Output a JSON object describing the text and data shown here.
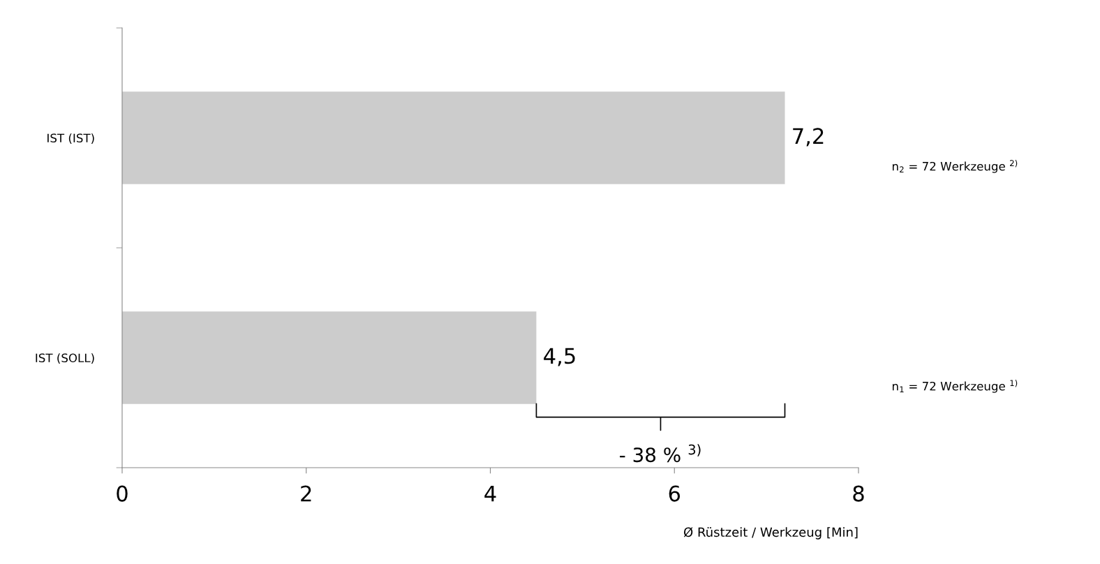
{
  "chart_data": {
    "type": "bar",
    "orientation": "horizontal",
    "categories": [
      "IST (IST)",
      "IST (SOLL)"
    ],
    "values": [
      7.2,
      4.5
    ],
    "value_labels": [
      "7,2",
      "4,5"
    ],
    "color": "#cccccc",
    "xlabel": "Ø Rüstzeit / Werkzeug [Min]",
    "xlim": [
      0,
      8
    ],
    "xticks": [
      0,
      2,
      4,
      6,
      8
    ],
    "grid": false,
    "legend": false,
    "annotations": [
      "n$_{2}$ = 72 Werkzeuge $^{2)}$",
      "n$_{1}$ = 72 Werkzeuge $^{1)}$",
      "- 38 % $^{3)}$"
    ]
  }
}
